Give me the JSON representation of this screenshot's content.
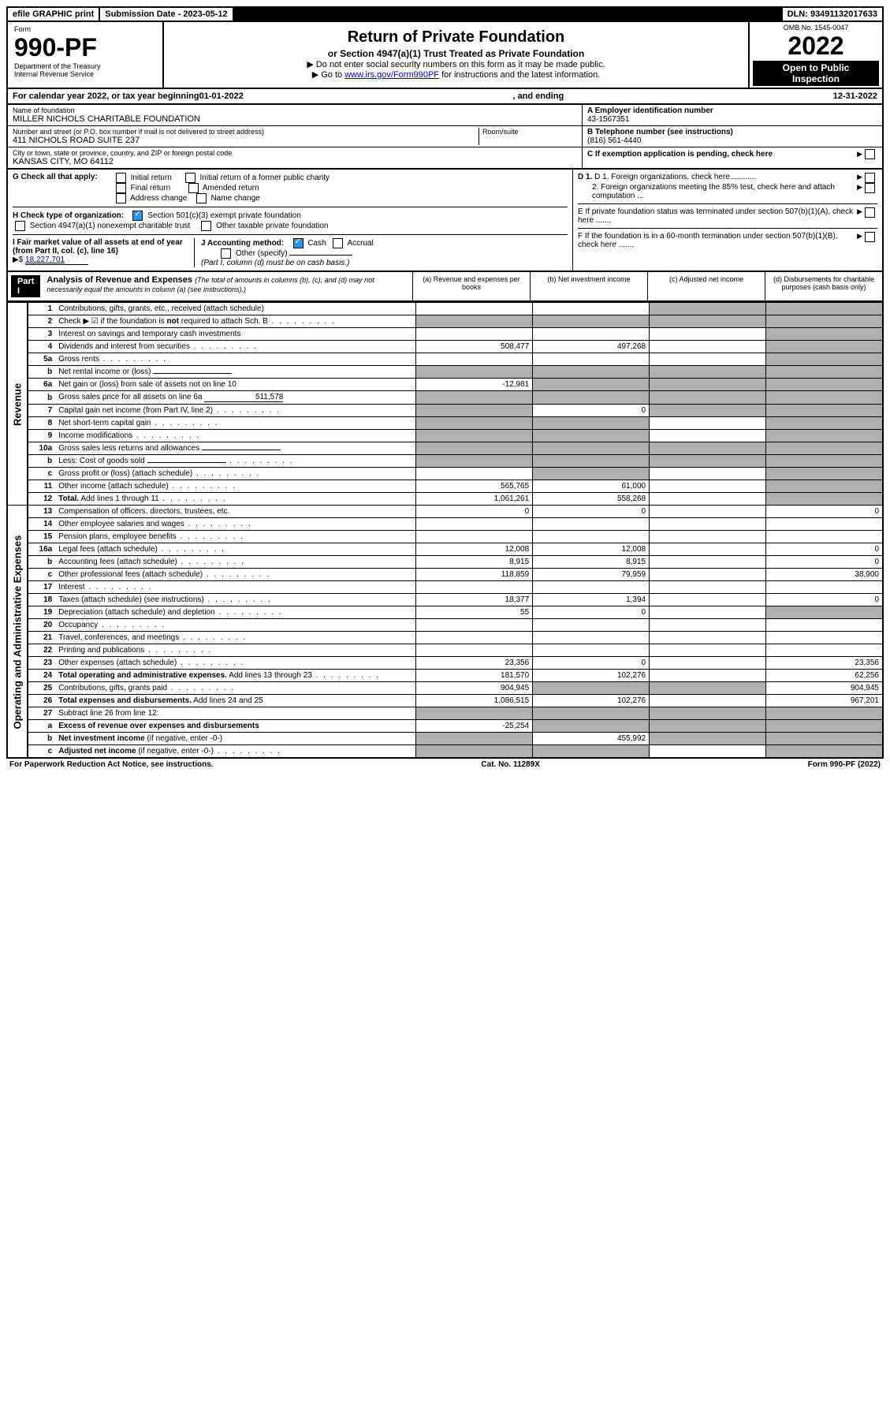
{
  "topbar": {
    "efile": "efile GRAPHIC print",
    "submission_label": "Submission Date - 2023-05-12",
    "dln": "DLN: 93491132017633"
  },
  "header": {
    "form_word": "Form",
    "form_number": "990-PF",
    "dept": "Department of the Treasury",
    "irs": "Internal Revenue Service",
    "title": "Return of Private Foundation",
    "subtitle": "or Section 4947(a)(1) Trust Treated as Private Foundation",
    "note1": "▶ Do not enter social security numbers on this form as it may be made public.",
    "note2_pre": "▶ Go to ",
    "note2_link": "www.irs.gov/Form990PF",
    "note2_post": " for instructions and the latest information.",
    "omb": "OMB No. 1545-0047",
    "year": "2022",
    "open": "Open to Public",
    "inspection": "Inspection"
  },
  "calyear": {
    "pre": "For calendar year 2022, or tax year beginning ",
    "begin": "01-01-2022",
    "mid": " , and ending ",
    "end": "12-31-2022"
  },
  "info": {
    "name_label": "Name of foundation",
    "name": "MILLER NICHOLS CHARITABLE FOUNDATION",
    "addr_label": "Number and street (or P.O. box number if mail is not delivered to street address)",
    "addr": "411 NICHOLS ROAD SUITE 237",
    "room_label": "Room/suite",
    "city_label": "City or town, state or province, country, and ZIP or foreign postal code",
    "city": "KANSAS CITY, MO  64112",
    "ein_label": "A Employer identification number",
    "ein": "43-1567351",
    "phone_label": "B Telephone number (see instructions)",
    "phone": "(816) 561-4440",
    "c_label": "C If exemption application is pending, check here"
  },
  "checks": {
    "g_label": "G Check all that apply:",
    "g_opts": [
      "Initial return",
      "Initial return of a former public charity",
      "Final return",
      "Amended return",
      "Address change",
      "Name change"
    ],
    "h_label": "H Check type of organization:",
    "h1": "Section 501(c)(3) exempt private foundation",
    "h2": "Section 4947(a)(1) nonexempt charitable trust",
    "h3": "Other taxable private foundation",
    "i_label": "I Fair market value of all assets at end of year (from Part II, col. (c), line 16)",
    "i_val": "18,227,701",
    "j_label": "J Accounting method:",
    "j_cash": "Cash",
    "j_accrual": "Accrual",
    "j_other": "Other (specify)",
    "j_note": "(Part I, column (d) must be on cash basis.)",
    "d1": "D 1. Foreign organizations, check here............",
    "d2": "2. Foreign organizations meeting the 85% test, check here and attach computation ...",
    "e": "E  If private foundation status was terminated under section 507(b)(1)(A), check here .......",
    "f": "F  If the foundation is in a 60-month termination under section 507(b)(1)(B), check here .......",
    "dollar": "▶$"
  },
  "part1": {
    "label": "Part I",
    "title": "Analysis of Revenue and Expenses",
    "title_note": " (The total of amounts in columns (b), (c), and (d) may not necessarily equal the amounts in column (a) (see instructions).)",
    "col_a": "(a)  Revenue and expenses per books",
    "col_b": "(b)  Net investment income",
    "col_c": "(c)  Adjusted net income",
    "col_d": "(d)  Disbursements for charitable purposes (cash basis only)"
  },
  "sides": {
    "revenue": "Revenue",
    "expenses": "Operating and Administrative Expenses"
  },
  "rows": [
    {
      "n": "1",
      "d": "Contributions, gifts, grants, etc., received (attach schedule)",
      "a": "",
      "b": "",
      "c_shade": true,
      "dv": "",
      "d_shade": true
    },
    {
      "n": "2",
      "d": "Check ▶ ☑ if the foundation is <b>not</b> required to attach Sch. B",
      "a_shade": true,
      "b_shade": true,
      "c_shade": true,
      "d_shade": true,
      "dots": true
    },
    {
      "n": "3",
      "d": "Interest on savings and temporary cash investments",
      "a": "",
      "b": "",
      "c": "",
      "d_shade": true
    },
    {
      "n": "4",
      "d": "Dividends and interest from securities",
      "a": "508,477",
      "b": "497,268",
      "c": "",
      "d_shade": true,
      "dots": true
    },
    {
      "n": "5a",
      "d": "Gross rents",
      "a": "",
      "b": "",
      "c": "",
      "d_shade": true,
      "dots": true
    },
    {
      "n": "b",
      "d": "Net rental income or (loss)",
      "a_shade": true,
      "b_shade": true,
      "c_shade": true,
      "d_shade": true,
      "inline_val": ""
    },
    {
      "n": "6a",
      "d": "Net gain or (loss) from sale of assets not on line 10",
      "a": "-12,981",
      "b_shade": true,
      "c_shade": true,
      "d_shade": true
    },
    {
      "n": "b",
      "d": "Gross sales price for all assets on line 6a",
      "a_shade": true,
      "b_shade": true,
      "c_shade": true,
      "d_shade": true,
      "inline_val": "511,578"
    },
    {
      "n": "7",
      "d": "Capital gain net income (from Part IV, line 2)",
      "a_shade": true,
      "b": "0",
      "c_shade": true,
      "d_shade": true,
      "dots": true
    },
    {
      "n": "8",
      "d": "Net short-term capital gain",
      "a_shade": true,
      "b_shade": true,
      "c": "",
      "d_shade": true,
      "dots": true
    },
    {
      "n": "9",
      "d": "Income modifications",
      "a_shade": true,
      "b_shade": true,
      "c": "",
      "d_shade": true,
      "dots": true
    },
    {
      "n": "10a",
      "d": "Gross sales less returns and allowances",
      "a_shade": true,
      "b_shade": true,
      "c_shade": true,
      "d_shade": true,
      "inline_val": ""
    },
    {
      "n": "b",
      "d": "Less: Cost of goods sold",
      "a_shade": true,
      "b_shade": true,
      "c_shade": true,
      "d_shade": true,
      "inline_val": "",
      "dots": true
    },
    {
      "n": "c",
      "d": "Gross profit or (loss) (attach schedule)",
      "a": "",
      "b_shade": true,
      "c": "",
      "d_shade": true,
      "dots": true
    },
    {
      "n": "11",
      "d": "Other income (attach schedule)",
      "a": "565,765",
      "b": "61,000",
      "c": "",
      "d_shade": true,
      "dots": true
    },
    {
      "n": "12",
      "d": "<b>Total.</b> Add lines 1 through 11",
      "a": "1,061,261",
      "b": "558,268",
      "c": "",
      "d_shade": true,
      "dots": true,
      "bold": true
    },
    {
      "n": "13",
      "d": "Compensation of officers, directors, trustees, etc.",
      "a": "0",
      "b": "0",
      "c": "",
      "dv": "0",
      "sec": "exp"
    },
    {
      "n": "14",
      "d": "Other employee salaries and wages",
      "a": "",
      "b": "",
      "c": "",
      "dv": "",
      "dots": true,
      "sec": "exp"
    },
    {
      "n": "15",
      "d": "Pension plans, employee benefits",
      "a": "",
      "b": "",
      "c": "",
      "dv": "",
      "dots": true,
      "sec": "exp"
    },
    {
      "n": "16a",
      "d": "Legal fees (attach schedule)",
      "a": "12,008",
      "b": "12,008",
      "c": "",
      "dv": "0",
      "dots": true,
      "sec": "exp"
    },
    {
      "n": "b",
      "d": "Accounting fees (attach schedule)",
      "a": "8,915",
      "b": "8,915",
      "c": "",
      "dv": "0",
      "dots": true,
      "sec": "exp"
    },
    {
      "n": "c",
      "d": "Other professional fees (attach schedule)",
      "a": "118,859",
      "b": "79,959",
      "c": "",
      "dv": "38,900",
      "dots": true,
      "sec": "exp"
    },
    {
      "n": "17",
      "d": "Interest",
      "a": "",
      "b": "",
      "c": "",
      "dv": "",
      "dots": true,
      "sec": "exp"
    },
    {
      "n": "18",
      "d": "Taxes (attach schedule) (see instructions)",
      "a": "18,377",
      "b": "1,394",
      "c": "",
      "dv": "0",
      "dots": true,
      "sec": "exp"
    },
    {
      "n": "19",
      "d": "Depreciation (attach schedule) and depletion",
      "a": "55",
      "b": "0",
      "c": "",
      "d_shade": true,
      "dots": true,
      "sec": "exp"
    },
    {
      "n": "20",
      "d": "Occupancy",
      "a": "",
      "b": "",
      "c": "",
      "dv": "",
      "dots": true,
      "sec": "exp"
    },
    {
      "n": "21",
      "d": "Travel, conferences, and meetings",
      "a": "",
      "b": "",
      "c": "",
      "dv": "",
      "dots": true,
      "sec": "exp"
    },
    {
      "n": "22",
      "d": "Printing and publications",
      "a": "",
      "b": "",
      "c": "",
      "dv": "",
      "dots": true,
      "sec": "exp"
    },
    {
      "n": "23",
      "d": "Other expenses (attach schedule)",
      "a": "23,356",
      "b": "0",
      "c": "",
      "dv": "23,356",
      "dots": true,
      "sec": "exp"
    },
    {
      "n": "24",
      "d": "<b>Total operating and administrative expenses.</b> Add lines 13 through 23",
      "a": "181,570",
      "b": "102,276",
      "c": "",
      "dv": "62,256",
      "dots": true,
      "sec": "exp",
      "bold": true
    },
    {
      "n": "25",
      "d": "Contributions, gifts, grants paid",
      "a": "904,945",
      "b_shade": true,
      "c_shade": true,
      "dv": "904,945",
      "dots": true,
      "sec": "exp"
    },
    {
      "n": "26",
      "d": "<b>Total expenses and disbursements.</b> Add lines 24 and 25",
      "a": "1,086,515",
      "b": "102,276",
      "c": "",
      "dv": "967,201",
      "sec": "exp",
      "bold": true
    },
    {
      "n": "27",
      "d": "Subtract line 26 from line 12:",
      "a_shade": true,
      "b_shade": true,
      "c_shade": true,
      "d_shade": true,
      "sec": "end"
    },
    {
      "n": "a",
      "d": "<b>Excess of revenue over expenses and disbursements</b>",
      "a": "-25,254",
      "b_shade": true,
      "c_shade": true,
      "d_shade": true,
      "sec": "end"
    },
    {
      "n": "b",
      "d": "<b>Net investment income</b> (if negative, enter -0-)",
      "a_shade": true,
      "b": "455,992",
      "c_shade": true,
      "d_shade": true,
      "sec": "end"
    },
    {
      "n": "c",
      "d": "<b>Adjusted net income</b> (if negative, enter -0-)",
      "a_shade": true,
      "b_shade": true,
      "c": "",
      "d_shade": true,
      "sec": "end",
      "dots": true
    }
  ],
  "footer": {
    "left": "For Paperwork Reduction Act Notice, see instructions.",
    "mid": "Cat. No. 11289X",
    "right": "Form 990-PF (2022)"
  }
}
